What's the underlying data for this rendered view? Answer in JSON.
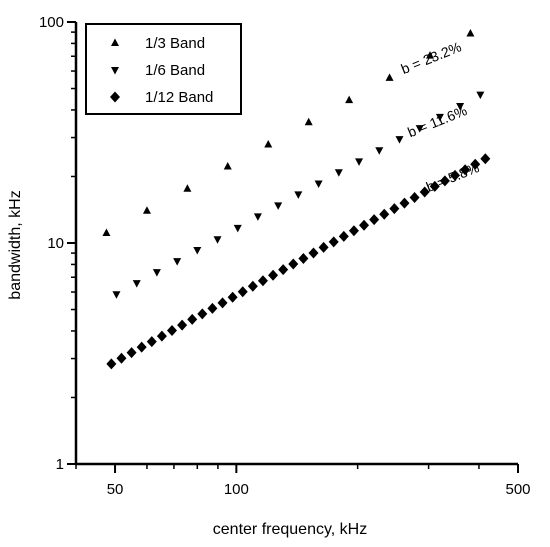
{
  "chart_data": {
    "type": "scatter",
    "title": "",
    "xlabel": "center frequency, kHz",
    "ylabel": "bandwidth, kHz",
    "xscale": "log",
    "yscale": "log",
    "xlim": [
      40,
      500
    ],
    "ylim": [
      1,
      100
    ],
    "x_ticks": [
      50,
      100,
      500
    ],
    "y_ticks": [
      1,
      10,
      100
    ],
    "x_tick_labels": [
      "50",
      "100",
      "500"
    ],
    "y_tick_labels": [
      "1",
      "10",
      "100"
    ],
    "grid": false,
    "legend_position": "top-left",
    "series": [
      {
        "name": "1/3 Band",
        "marker": "triangle-up",
        "color": "#000000",
        "x": [
          47.6,
          60,
          75.6,
          95.2,
          120,
          151.2,
          190.5,
          240,
          302.4,
          381
        ],
        "y": [
          11.1,
          14.0,
          17.6,
          22.2,
          27.9,
          35.2,
          44.3,
          55.9,
          70.4,
          88.7
        ]
      },
      {
        "name": "1/6 Band",
        "marker": "triangle-down",
        "color": "#000000",
        "x": [
          50.4,
          56.6,
          63.5,
          71.3,
          80,
          89.8,
          100.8,
          113.1,
          127,
          142.5,
          160,
          179.6,
          201.6,
          226.3,
          254,
          285.1,
          320,
          359.2,
          403.2
        ],
        "y": [
          5.86,
          6.58,
          7.38,
          8.28,
          9.3,
          10.4,
          11.7,
          13.2,
          14.8,
          16.6,
          18.6,
          20.9,
          23.4,
          26.3,
          29.5,
          33.1,
          37.2,
          41.7,
          46.9
        ]
      },
      {
        "name": "1/12 Band",
        "marker": "diamond",
        "color": "#000000",
        "x": [
          48.96,
          51.87,
          54.95,
          58.22,
          61.68,
          65.35,
          69.23,
          73.35,
          77.71,
          82.33,
          87.22,
          92.41,
          97.9,
          103.72,
          109.89,
          116.42,
          123.34,
          130.67,
          138.44,
          146.68,
          155.4,
          164.64,
          174.43,
          184.8,
          195.79,
          207.43,
          219.76,
          232.83,
          246.68,
          261.35,
          276.89,
          293.35,
          310.79,
          329.27,
          348.85,
          369.59,
          391.57,
          414.85
        ],
        "y": [
          2.84,
          3.01,
          3.19,
          3.38,
          3.58,
          3.79,
          4.02,
          4.25,
          4.51,
          4.78,
          5.06,
          5.36,
          5.68,
          6.02,
          6.37,
          6.75,
          7.15,
          7.58,
          8.03,
          8.51,
          9.01,
          9.55,
          10.12,
          10.72,
          11.36,
          12.03,
          12.75,
          13.5,
          14.31,
          15.16,
          16.06,
          17.01,
          18.03,
          19.1,
          20.23,
          21.44,
          22.71,
          24.06
        ]
      }
    ],
    "annotations": [
      {
        "text": "b = 23.2%",
        "x": 260,
        "y": 58,
        "angle": -22
      },
      {
        "text": "b = 11.6%",
        "x": 270,
        "y": 30,
        "angle": -22
      },
      {
        "text": "b = 5.8%",
        "x": 300,
        "y": 17,
        "angle": -22
      }
    ]
  }
}
